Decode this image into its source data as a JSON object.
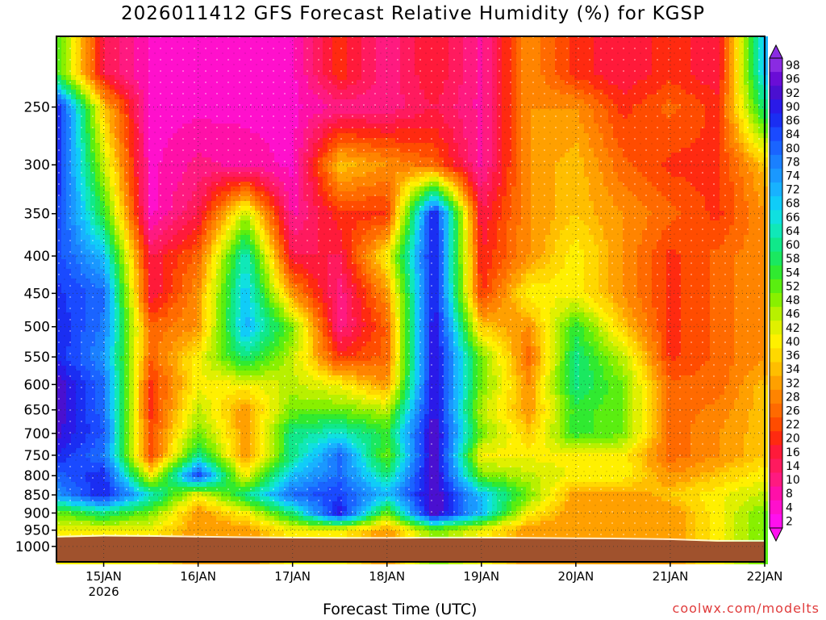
{
  "title": "2026011412 GFS Forecast Relative Humidity (%) for KGSP",
  "xlabel": "Forecast Time (UTC)",
  "credit": "coolwx.com/modelts",
  "chart_data": {
    "type": "heatmap",
    "title": "2026011412 GFS Forecast Relative Humidity (%) for KGSP",
    "xlabel": "Forecast Time (UTC)",
    "ylabel": "",
    "y_axis": {
      "scale": "log",
      "inverted": true,
      "range": [
        1050,
        200
      ],
      "ticks": [
        250,
        300,
        350,
        400,
        450,
        500,
        550,
        600,
        650,
        700,
        750,
        800,
        850,
        900,
        950,
        1000
      ]
    },
    "x_axis": {
      "range_days": [
        14.5,
        22.0
      ],
      "ticks": [
        {
          "day": 15,
          "label": "15JAN",
          "sublabel": "2026"
        },
        {
          "day": 16,
          "label": "16JAN"
        },
        {
          "day": 17,
          "label": "17JAN"
        },
        {
          "day": 18,
          "label": "18JAN"
        },
        {
          "day": 19,
          "label": "19JAN"
        },
        {
          "day": 20,
          "label": "20JAN"
        },
        {
          "day": 21,
          "label": "21JAN"
        },
        {
          "day": 22,
          "label": "22JAN"
        }
      ]
    },
    "grid": true,
    "colorbar": {
      "position": "right",
      "labels": [
        98,
        96,
        92,
        90,
        86,
        84,
        80,
        78,
        74,
        72,
        68,
        66,
        64,
        60,
        58,
        54,
        52,
        48,
        46,
        42,
        40,
        36,
        34,
        32,
        28,
        26,
        22,
        20,
        16,
        14,
        10,
        8,
        4,
        2
      ],
      "colors": [
        "#8a2be2",
        "#6a0dd6",
        "#4a10d0",
        "#2a1ae8",
        "#1a2ef2",
        "#1a4aff",
        "#1a64ff",
        "#1a80ff",
        "#1a98ff",
        "#18b2ff",
        "#10ccf8",
        "#10e0e0",
        "#10e8b8",
        "#10e88a",
        "#1ae860",
        "#30ea30",
        "#5aee10",
        "#88f000",
        "#b8f000",
        "#e0f000",
        "#fff000",
        "#ffd800",
        "#ffbe00",
        "#ffa000",
        "#ff8400",
        "#ff6a00",
        "#ff4c00",
        "#ff2a10",
        "#ff1a3a",
        "#ff1a5e",
        "#ff1a80",
        "#ff10a8",
        "#ff10cc",
        "#ff10ee"
      ]
    },
    "surface_color": "#a0522d",
    "rh_grid": {
      "note": "approximate relative humidity (%) sampled every 0.5 day at selected pressure levels",
      "times_day": [
        14.5,
        15.0,
        15.5,
        16.0,
        16.5,
        17.0,
        17.5,
        18.0,
        18.5,
        19.0,
        19.5,
        20.0,
        20.5,
        21.0,
        21.5,
        22.0
      ],
      "levels_hpa": [
        225,
        250,
        300,
        350,
        400,
        450,
        500,
        550,
        600,
        650,
        700,
        750,
        800,
        850,
        900,
        950
      ],
      "values": [
        [
          55,
          15,
          5,
          5,
          5,
          5,
          20,
          10,
          18,
          8,
          30,
          20,
          15,
          20,
          15,
          70
        ],
        [
          90,
          35,
          5,
          5,
          5,
          5,
          10,
          10,
          15,
          8,
          30,
          30,
          20,
          25,
          20,
          60
        ],
        [
          88,
          45,
          5,
          10,
          8,
          5,
          35,
          30,
          25,
          8,
          30,
          35,
          25,
          20,
          20,
          35
        ],
        [
          86,
          55,
          5,
          15,
          45,
          8,
          20,
          20,
          90,
          15,
          30,
          35,
          30,
          25,
          20,
          30
        ],
        [
          84,
          70,
          15,
          25,
          65,
          15,
          15,
          40,
          90,
          18,
          30,
          40,
          30,
          20,
          25,
          30
        ],
        [
          86,
          80,
          15,
          30,
          70,
          30,
          10,
          30,
          90,
          20,
          40,
          40,
          30,
          20,
          25,
          30
        ],
        [
          88,
          78,
          25,
          30,
          72,
          50,
          10,
          25,
          92,
          35,
          30,
          55,
          35,
          20,
          25,
          30
        ],
        [
          88,
          75,
          25,
          40,
          60,
          45,
          20,
          25,
          92,
          50,
          25,
          60,
          45,
          20,
          25,
          30
        ],
        [
          94,
          80,
          20,
          40,
          40,
          45,
          40,
          30,
          92,
          50,
          30,
          60,
          50,
          25,
          25,
          35
        ],
        [
          94,
          80,
          20,
          45,
          30,
          50,
          50,
          45,
          92,
          45,
          30,
          55,
          50,
          25,
          28,
          35
        ],
        [
          92,
          82,
          22,
          50,
          30,
          60,
          65,
          55,
          95,
          50,
          35,
          55,
          50,
          25,
          30,
          35
        ],
        [
          88,
          78,
          22,
          60,
          30,
          60,
          80,
          50,
          95,
          40,
          40,
          40,
          40,
          25,
          30,
          35
        ],
        [
          80,
          88,
          40,
          85,
          40,
          70,
          80,
          60,
          95,
          50,
          45,
          40,
          40,
          30,
          35,
          40
        ],
        [
          75,
          88,
          65,
          40,
          60,
          80,
          85,
          70,
          95,
          70,
          50,
          30,
          30,
          35,
          40,
          45
        ],
        [
          50,
          60,
          50,
          30,
          40,
          60,
          90,
          50,
          95,
          70,
          40,
          30,
          30,
          30,
          40,
          50
        ],
        [
          40,
          40,
          40,
          30,
          30,
          40,
          40,
          30,
          50,
          40,
          30,
          30,
          30,
          30,
          40,
          50
        ]
      ]
    }
  }
}
